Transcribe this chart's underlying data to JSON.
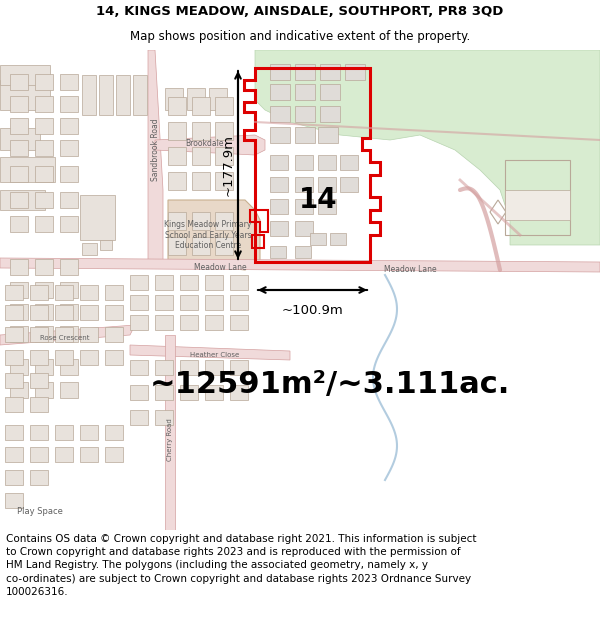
{
  "title_line1": "14, KINGS MEADOW, AINSDALE, SOUTHPORT, PR8 3QD",
  "title_line2": "Map shows position and indicative extent of the property.",
  "area_label": "~12591m²/~3.111ac.",
  "width_label": "~100.9m",
  "height_label": "~177.9m",
  "property_number": "14",
  "footer_text": "Contains OS data © Crown copyright and database right 2021. This information is subject to Crown copyright and database rights 2023 and is reproduced with the permission of HM Land Registry. The polygons (including the associated geometry, namely x, y co-ordinates) are subject to Crown copyright and database rights 2023 Ordnance Survey 100026316.",
  "map_bg": "#f5f3f0",
  "road_fill": "#f0dada",
  "road_stroke": "#d4a0a0",
  "building_fill": "#e8e2dc",
  "building_stroke": "#b8a898",
  "school_fill": "#e8d8c8",
  "green_fill": "#d8ecd0",
  "highlight_color": "#dd0000",
  "text_color": "#606060",
  "label_color": "#000000"
}
